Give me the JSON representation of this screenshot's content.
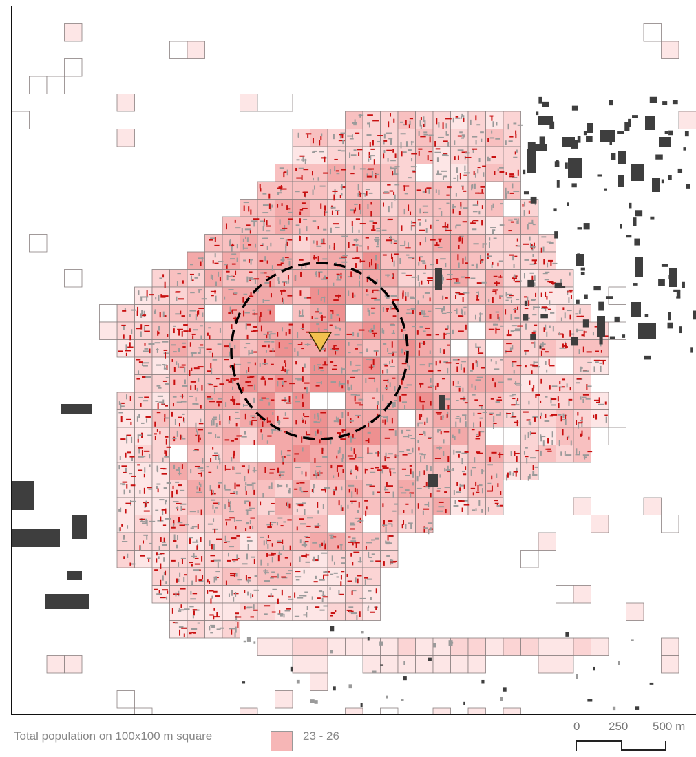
{
  "map": {
    "population_colors": [
      "#fde6e6",
      "#fbd4d4",
      "#f8c0c0",
      "#f3a9a9",
      "#ee9090"
    ],
    "grid_stroke": "#8a8080",
    "building_colors": {
      "residential": "#c80f0f",
      "other": "#3e3e3e",
      "minor": "#9a9a9a"
    },
    "station_marker": {
      "icon": "triangle-down-icon",
      "color": "#f2c14e"
    },
    "catchment_circle": {
      "style": "dashed",
      "color": "#000000"
    }
  },
  "scale_bar": {
    "labels": [
      "0",
      "250",
      "500 m"
    ]
  },
  "legend": {
    "label": "Total population on 100x100 m square",
    "range": "23 - 26",
    "swatch_color": "#f6b6b6"
  }
}
